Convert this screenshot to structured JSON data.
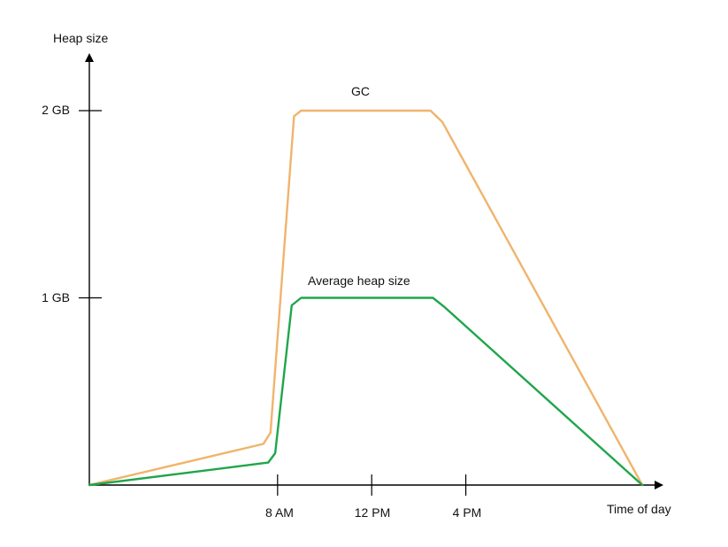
{
  "chart_data": {
    "type": "line",
    "title": "",
    "xlabel": "Time of day",
    "ylabel": "Heap size",
    "x_ticks": [
      {
        "label": "8 AM",
        "value": 8
      },
      {
        "label": "12 PM",
        "value": 12
      },
      {
        "label": "4 PM",
        "value": 16
      }
    ],
    "y_ticks": [
      {
        "label": "1 GB",
        "value": 1
      },
      {
        "label": "2 GB",
        "value": 2
      }
    ],
    "xlim": [
      0,
      24
    ],
    "ylim": [
      0,
      2.2
    ],
    "grid": false,
    "legend": "none",
    "series": [
      {
        "name": "GC",
        "color": "#F0B46C",
        "x": [
          0,
          7.4,
          7.7,
          8.7,
          9.0,
          14.5,
          15.0,
          23.5
        ],
        "y": [
          0,
          0.22,
          0.28,
          1.97,
          2.0,
          2.0,
          1.94,
          0
        ]
      },
      {
        "name": "Average heap size",
        "color": "#1FA64B",
        "x": [
          0,
          7.6,
          7.9,
          8.6,
          9.0,
          14.6,
          15.1,
          23.5
        ],
        "y": [
          0,
          0.12,
          0.17,
          0.96,
          1.0,
          1.0,
          0.95,
          0
        ]
      }
    ]
  }
}
